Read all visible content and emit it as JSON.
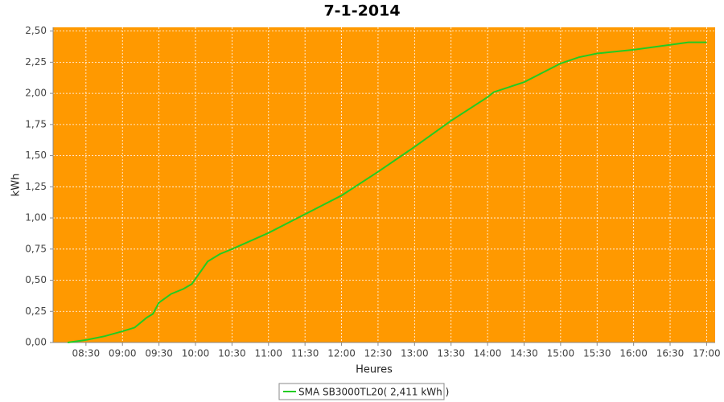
{
  "chart_data": {
    "type": "line",
    "title": "7-1-2014",
    "x_label": "Heures",
    "y_label": "kWh",
    "x": [
      "08:15",
      "08:30",
      "08:45",
      "09:00",
      "09:10",
      "09:20",
      "09:25",
      "09:30",
      "09:40",
      "09:50",
      "09:57",
      "10:05",
      "10:10",
      "10:20",
      "10:30",
      "11:00",
      "11:30",
      "12:00",
      "12:30",
      "13:00",
      "13:30",
      "14:00",
      "14:05",
      "14:30",
      "15:00",
      "15:15",
      "15:30",
      "16:00",
      "16:30",
      "16:45",
      "17:00"
    ],
    "series": [
      {
        "name": "SMA SB3000TL20( 2,411 kWh )",
        "color": "#22cc22",
        "values": [
          0.0,
          0.02,
          0.05,
          0.09,
          0.12,
          0.2,
          0.23,
          0.32,
          0.39,
          0.43,
          0.47,
          0.58,
          0.65,
          0.71,
          0.75,
          0.88,
          1.03,
          1.18,
          1.37,
          1.57,
          1.78,
          1.97,
          2.01,
          2.09,
          2.24,
          2.29,
          2.32,
          2.35,
          2.39,
          2.41,
          2.41
        ]
      }
    ],
    "xlim": [
      "08:03",
      "17:07"
    ],
    "xticks": [
      "08:30",
      "09:00",
      "09:30",
      "10:00",
      "10:30",
      "11:00",
      "11:30",
      "12:00",
      "12:30",
      "13:00",
      "13:30",
      "14:00",
      "14:30",
      "15:00",
      "15:30",
      "16:00",
      "16:30",
      "17:00"
    ],
    "ylim": [
      0,
      2.53
    ],
    "yticks": [
      {
        "value": 0,
        "label": "0,00"
      },
      {
        "value": 0.25,
        "label": "0,25"
      },
      {
        "value": 0.5,
        "label": "0,50"
      },
      {
        "value": 0.75,
        "label": "0,75"
      },
      {
        "value": 1,
        "label": "1,00"
      },
      {
        "value": 1.25,
        "label": "1,25"
      },
      {
        "value": 1.5,
        "label": "1,50"
      },
      {
        "value": 1.75,
        "label": "1,75"
      },
      {
        "value": 2,
        "label": "2,00"
      },
      {
        "value": 2.25,
        "label": "2,25"
      },
      {
        "value": 2.5,
        "label": "2,50"
      }
    ],
    "grid": true,
    "background": "#ff9900",
    "legend": "bottom"
  }
}
